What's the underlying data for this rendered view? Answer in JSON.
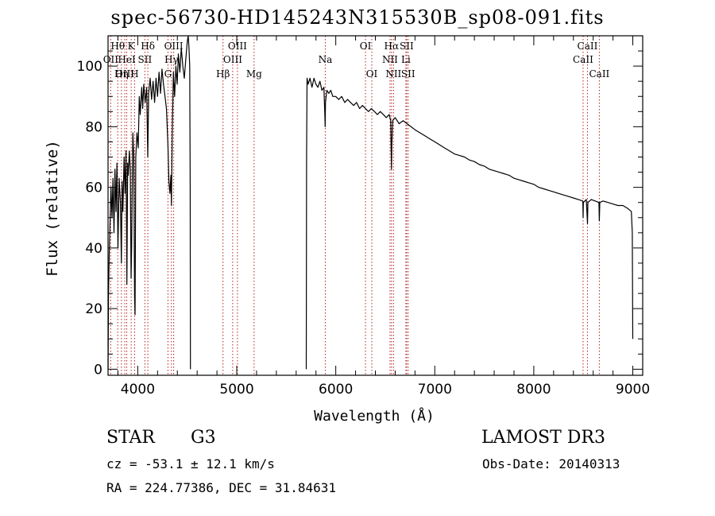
{
  "chart_data": {
    "type": "line",
    "title": "spec-56730-HD145243N315530B_sp08-091.fits",
    "xlabel": "Wavelength (Å)",
    "ylabel": "Flux (relative)",
    "xlim": [
      3700,
      9100
    ],
    "ylim": [
      -2,
      110
    ],
    "xticks": [
      4000,
      5000,
      6000,
      7000,
      8000,
      9000
    ],
    "yticks": [
      0,
      20,
      40,
      60,
      80,
      100
    ],
    "series": [
      {
        "name": "spectrum",
        "segments": [
          [
            [
              3700,
              0
            ],
            [
              3705,
              25
            ],
            [
              3712,
              38
            ],
            [
              3720,
              48
            ],
            [
              3730,
              60
            ],
            [
              3740,
              50
            ],
            [
              3750,
              63
            ],
            [
              3760,
              45
            ],
            [
              3770,
              66
            ],
            [
              3780,
              52
            ],
            [
              3790,
              68
            ],
            [
              3800,
              40
            ],
            [
              3812,
              63
            ],
            [
              3825,
              55
            ],
            [
              3835,
              35
            ],
            [
              3842,
              62
            ],
            [
              3850,
              52
            ],
            [
              3862,
              70
            ],
            [
              3872,
              58
            ],
            [
              3882,
              72
            ],
            [
              3890,
              28
            ],
            [
              3898,
              68
            ],
            [
              3905,
              64
            ],
            [
              3915,
              72
            ],
            [
              3925,
              66
            ],
            [
              3933,
              30
            ],
            [
              3938,
              40
            ],
            [
              3950,
              78
            ],
            [
              3960,
              70
            ],
            [
              3968,
              24
            ],
            [
              3973,
              18
            ],
            [
              3980,
              70
            ],
            [
              3992,
              78
            ],
            [
              4005,
              73
            ],
            [
              4015,
              90
            ],
            [
              4025,
              84
            ],
            [
              4040,
              93
            ],
            [
              4050,
              86
            ],
            [
              4060,
              94
            ],
            [
              4075,
              88
            ],
            [
              4090,
              93
            ],
            [
              4101,
              70
            ],
            [
              4110,
              91
            ],
            [
              4125,
              96
            ],
            [
              4140,
              89
            ],
            [
              4155,
              95
            ],
            [
              4170,
              88
            ],
            [
              4185,
              96
            ],
            [
              4200,
              90
            ],
            [
              4215,
              98
            ],
            [
              4230,
              91
            ],
            [
              4245,
              99
            ],
            [
              4260,
              94
            ],
            [
              4275,
              90
            ],
            [
              4290,
              86
            ],
            [
              4305,
              74
            ],
            [
              4315,
              62
            ],
            [
              4325,
              58
            ],
            [
              4335,
              64
            ],
            [
              4340,
              54
            ],
            [
              4348,
              78
            ],
            [
              4360,
              98
            ],
            [
              4372,
              90
            ],
            [
              4385,
              100
            ],
            [
              4398,
              94
            ],
            [
              4410,
              104
            ],
            [
              4425,
              98
            ],
            [
              4440,
              106
            ],
            [
              4455,
              100
            ],
            [
              4470,
              96
            ],
            [
              4485,
              102
            ],
            [
              4500,
              108
            ],
            [
              4510,
              110
            ],
            [
              4518,
              106
            ],
            [
              4525,
              100
            ],
            [
              4530,
              60
            ],
            [
              4532,
              0
            ]
          ],
          [
            [
              5702,
              0
            ],
            [
              5705,
              70
            ],
            [
              5710,
              96
            ],
            [
              5720,
              94
            ],
            [
              5740,
              96
            ],
            [
              5760,
              93
            ],
            [
              5780,
              96
            ],
            [
              5800,
              94
            ],
            [
              5820,
              93
            ],
            [
              5840,
              95
            ],
            [
              5860,
              92
            ],
            [
              5880,
              93
            ],
            [
              5890,
              84
            ],
            [
              5893,
              80
            ],
            [
              5896,
              88
            ],
            [
              5910,
              92
            ],
            [
              5930,
              91
            ],
            [
              5950,
              92
            ],
            [
              5970,
              90
            ],
            [
              6000,
              90
            ],
            [
              6030,
              89
            ],
            [
              6060,
              90
            ],
            [
              6090,
              88
            ],
            [
              6120,
              89
            ],
            [
              6150,
              88
            ],
            [
              6180,
              87
            ],
            [
              6210,
              88
            ],
            [
              6240,
              86
            ],
            [
              6270,
              87
            ],
            [
              6300,
              86
            ],
            [
              6330,
              85
            ],
            [
              6360,
              86
            ],
            [
              6390,
              85
            ],
            [
              6420,
              84
            ],
            [
              6450,
              85
            ],
            [
              6480,
              84
            ],
            [
              6510,
              83
            ],
            [
              6540,
              84
            ],
            [
              6555,
              82
            ],
            [
              6560,
              72
            ],
            [
              6563,
              66
            ],
            [
              6566,
              74
            ],
            [
              6575,
              82
            ],
            [
              6600,
              83
            ],
            [
              6640,
              81
            ],
            [
              6680,
              82
            ],
            [
              6720,
              81
            ],
            [
              6760,
              80
            ],
            [
              6800,
              79
            ],
            [
              6850,
              78
            ],
            [
              6900,
              77
            ],
            [
              6950,
              76
            ],
            [
              7000,
              75
            ],
            [
              7050,
              74
            ],
            [
              7100,
              73
            ],
            [
              7150,
              72
            ],
            [
              7200,
              71
            ],
            [
              7250,
              70.5
            ],
            [
              7300,
              70
            ],
            [
              7350,
              69
            ],
            [
              7400,
              68.5
            ],
            [
              7450,
              67.5
            ],
            [
              7500,
              67
            ],
            [
              7550,
              66
            ],
            [
              7600,
              65.5
            ],
            [
              7650,
              65
            ],
            [
              7700,
              64.5
            ],
            [
              7750,
              64
            ],
            [
              7800,
              63
            ],
            [
              7850,
              62.5
            ],
            [
              7900,
              62
            ],
            [
              7950,
              61.5
            ],
            [
              8000,
              61
            ],
            [
              8050,
              60
            ],
            [
              8100,
              59.5
            ],
            [
              8150,
              59
            ],
            [
              8200,
              58.5
            ],
            [
              8250,
              58
            ],
            [
              8300,
              57.5
            ],
            [
              8350,
              57
            ],
            [
              8400,
              56.5
            ],
            [
              8450,
              56
            ],
            [
              8495,
              55.5
            ],
            [
              8498,
              50
            ],
            [
              8501,
              55
            ],
            [
              8530,
              56
            ],
            [
              8542,
              48
            ],
            [
              8546,
              55
            ],
            [
              8580,
              56
            ],
            [
              8620,
              55.5
            ],
            [
              8658,
              55
            ],
            [
              8662,
              49
            ],
            [
              8667,
              55
            ],
            [
              8700,
              55.5
            ],
            [
              8750,
              55
            ],
            [
              8800,
              54.5
            ],
            [
              8850,
              54
            ],
            [
              8900,
              54
            ],
            [
              8950,
              53
            ],
            [
              8985,
              52
            ],
            [
              8995,
              45
            ],
            [
              9000,
              10
            ]
          ]
        ]
      }
    ],
    "lines": [
      {
        "name": "Hθ",
        "wl": 3798,
        "row": 1
      },
      {
        "name": "OII",
        "wl": 3727,
        "row": 2
      },
      {
        "name": "Hη",
        "wl": 3835,
        "row": 3
      },
      {
        "name": "OIII",
        "wl": 3869,
        "row": 3
      },
      {
        "name": "HeI",
        "wl": 3889,
        "row": 2
      },
      {
        "name": "K",
        "wl": 3934,
        "row": 1
      },
      {
        "name": "H",
        "wl": 3968,
        "row": 3
      },
      {
        "name": "SII",
        "wl": 4072,
        "row": 2
      },
      {
        "name": "Hδ",
        "wl": 4102,
        "row": 1
      },
      {
        "name": "Hγ",
        "wl": 4340,
        "row": 2
      },
      {
        "name": "G",
        "wl": 4305,
        "row": 3
      },
      {
        "name": "OIII",
        "wl": 4363,
        "row": 1
      },
      {
        "name": "Hβ",
        "wl": 4861,
        "row": 3
      },
      {
        "name": "OIII",
        "wl": 4959,
        "row": 2
      },
      {
        "name": "OIII",
        "wl": 5007,
        "row": 1
      },
      {
        "name": "Mg",
        "wl": 5175,
        "row": 3
      },
      {
        "name": "Na",
        "wl": 5894,
        "row": 2
      },
      {
        "name": "OI",
        "wl": 6300,
        "row": 1
      },
      {
        "name": "OI",
        "wl": 6364,
        "row": 3
      },
      {
        "name": "NII",
        "wl": 6548,
        "row": 2
      },
      {
        "name": "Hα",
        "wl": 6563,
        "row": 1
      },
      {
        "name": "NII",
        "wl": 6583,
        "row": 3
      },
      {
        "name": "SII",
        "wl": 6716,
        "row": 1
      },
      {
        "name": "SII",
        "wl": 6731,
        "row": 3
      },
      {
        "name": "Li",
        "wl": 6708,
        "row": 2
      },
      {
        "name": "CaII",
        "wl": 8498,
        "row": 2
      },
      {
        "name": "CaII",
        "wl": 8542,
        "row": 1
      },
      {
        "name": "CaII",
        "wl": 8662,
        "row": 3
      }
    ],
    "line_color": "#b22222"
  },
  "info": {
    "object_type": "STAR",
    "subclass": "G3",
    "survey": "LAMOST DR3",
    "cz": "cz = -53.1 ± 12.1 km/s",
    "obs_date": "Obs-Date: 20140313",
    "coords": "RA = 224.77386, DEC =  31.84631"
  }
}
